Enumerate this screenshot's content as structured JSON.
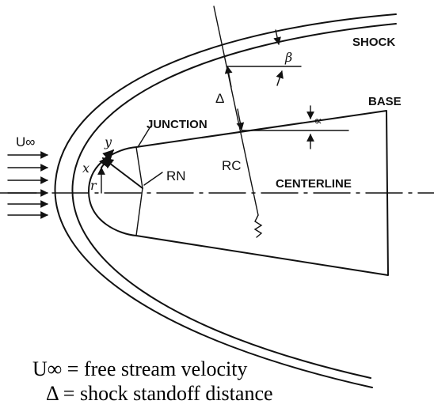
{
  "labels": {
    "shock": "SHOCK",
    "base": "BASE",
    "junction": "JUNCTION",
    "centerline": "CENTERLINE",
    "u_inf": "U∞",
    "beta": "β",
    "alpha": "∝",
    "delta": "Δ",
    "r_n": "RN",
    "r_c": "RC",
    "x": "x",
    "y": "y",
    "r": "r"
  },
  "captions": [
    "U∞ = free stream velocity",
    "Δ = shock standoff distance"
  ]
}
